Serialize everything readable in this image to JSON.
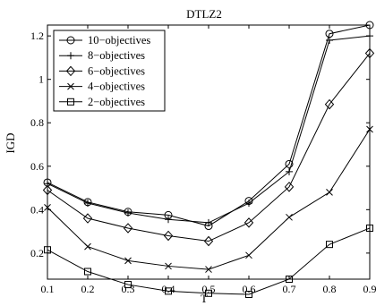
{
  "chart_data": {
    "type": "line",
    "title": "DTLZ2",
    "xlabel": "T",
    "ylabel": "IGD",
    "xlim": [
      0.1,
      0.9
    ],
    "ylim": [
      0.08,
      1.25
    ],
    "xticks": [
      0.1,
      0.2,
      0.3,
      0.4,
      0.5,
      0.6,
      0.7,
      0.8,
      0.9
    ],
    "xtick_labels": [
      "0.1",
      "0.2",
      "0.3",
      "0.4",
      "0.5",
      "0.6",
      "0.7",
      "0.8",
      "0.9"
    ],
    "yticks": [
      0.2,
      0.4,
      0.6,
      0.8,
      1.0,
      1.2
    ],
    "ytick_labels": [
      "0.2",
      "0.4",
      "0.6",
      "0.8",
      "1",
      "1.2"
    ],
    "grid": false,
    "legend_position": "top-left",
    "x": [
      0.1,
      0.2,
      0.3,
      0.4,
      0.5,
      0.6,
      0.7,
      0.8,
      0.9
    ],
    "series": [
      {
        "name": "10−objectives",
        "marker": "circle",
        "values": [
          0.525,
          0.435,
          0.39,
          0.375,
          0.325,
          0.44,
          0.61,
          1.21,
          1.25
        ]
      },
      {
        "name": "8−objectives",
        "marker": "plus",
        "values": [
          0.52,
          0.43,
          0.385,
          0.355,
          0.34,
          0.43,
          0.575,
          1.18,
          1.2
        ]
      },
      {
        "name": "6−objectives",
        "marker": "diamond",
        "values": [
          0.49,
          0.36,
          0.315,
          0.28,
          0.255,
          0.34,
          0.505,
          0.885,
          1.12
        ]
      },
      {
        "name": "4−objectives",
        "marker": "x",
        "values": [
          0.41,
          0.23,
          0.165,
          0.14,
          0.125,
          0.19,
          0.365,
          0.48,
          0.77
        ]
      },
      {
        "name": "2−objectives",
        "marker": "square",
        "values": [
          0.215,
          0.115,
          0.055,
          0.025,
          0.015,
          0.01,
          0.08,
          0.24,
          0.315
        ]
      }
    ]
  }
}
